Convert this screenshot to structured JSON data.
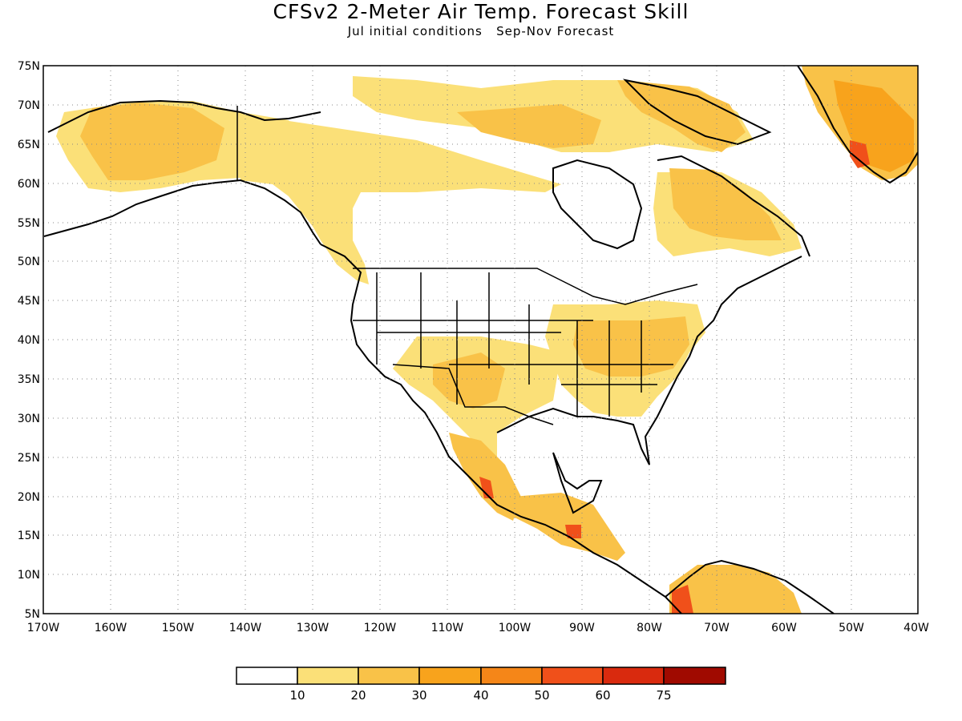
{
  "title": "CFSv2 2-Meter Air Temp. Forecast Skill",
  "subtitle": "Jul initial conditions   Sep-Nov Forecast",
  "lat_labels": [
    "75N",
    "70N",
    "65N",
    "60N",
    "55N",
    "50N",
    "45N",
    "40N",
    "35N",
    "30N",
    "25N",
    "20N",
    "15N",
    "10N",
    "5N"
  ],
  "lon_labels": [
    "170W",
    "160W",
    "150W",
    "140W",
    "130W",
    "120W",
    "110W",
    "100W",
    "90W",
    "80W",
    "70W",
    "60W",
    "50W",
    "40W"
  ],
  "map_extent": {
    "lon": [
      -170,
      -40
    ],
    "lat": [
      5,
      75
    ]
  },
  "gridlines": "dotted",
  "colorbar": {
    "labels": [
      "10",
      "20",
      "30",
      "40",
      "50",
      "60",
      "75"
    ],
    "colors": [
      "#ffffff",
      "#fbe078",
      "#f9c248",
      "#f8a31c",
      "#f58618",
      "#f0501a",
      "#d92a0e",
      "#a00a00"
    ]
  },
  "shading": {
    "white": "#ffffff",
    "c10_20": "#fbe078",
    "c20_30": "#f9c248",
    "c30_40": "#f8a31c",
    "c40_50": "#f58618",
    "c50_60": "#f0501a"
  }
}
